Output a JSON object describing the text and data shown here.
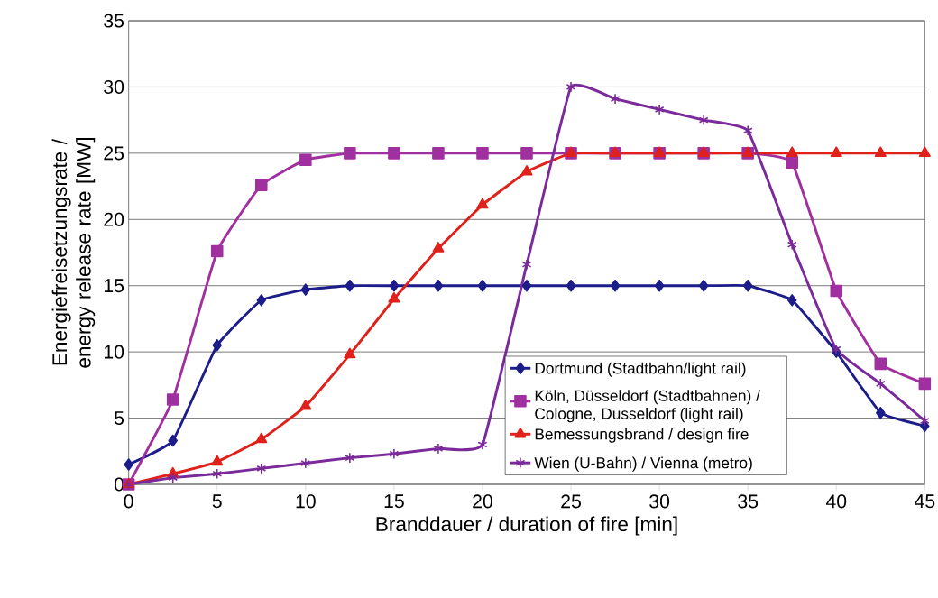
{
  "chart_data": {
    "type": "line",
    "xlabel": "Branddauer / duration of fire [min]",
    "ylabel": "Energiefreisetzungsrate / energy release rate [MW]",
    "x": [
      0,
      2.5,
      5,
      7.5,
      10,
      12.5,
      15,
      17.5,
      20,
      22.5,
      25,
      27.5,
      30,
      32.5,
      35,
      37.5,
      40,
      42.5,
      45
    ],
    "xlim": [
      0,
      45
    ],
    "xticks": [
      0,
      5,
      10,
      15,
      20,
      25,
      30,
      35,
      40,
      45
    ],
    "ylim": [
      0,
      35
    ],
    "yticks": [
      0,
      5,
      10,
      15,
      20,
      25,
      30,
      35
    ],
    "grid": "y",
    "legend": "bottom right",
    "series": [
      {
        "name": "Dortmund (Stadtbahn/light rail)",
        "color": "#1c1c8a",
        "marker": "diamond",
        "values": [
          1.5,
          3.3,
          10.5,
          13.9,
          14.7,
          15,
          15,
          15,
          15,
          15,
          15,
          15,
          15,
          15,
          15,
          13.9,
          10,
          5.4,
          4.4
        ]
      },
      {
        "name": "Köln, Düsseldorf (Stadtbahnen) / Cologne, Dusseldorf (light rail)",
        "color": "#a0309f",
        "marker": "square",
        "values": [
          0,
          6.4,
          17.6,
          22.6,
          24.5,
          25,
          25,
          25,
          25,
          25,
          25,
          25,
          25,
          25,
          25,
          24.3,
          14.6,
          9.1,
          7.6
        ]
      },
      {
        "name": "Bemessungsbrand / design fire",
        "color": "#e0201a",
        "marker": "triangle",
        "values": [
          0,
          0.8,
          1.7,
          3.4,
          5.9,
          9.8,
          14,
          17.8,
          21.1,
          23.6,
          25,
          25,
          25,
          25,
          25,
          25,
          25,
          25,
          25
        ]
      },
      {
        "name": "Wien (U-Bahn) / Vienna (metro)",
        "color": "#7a2a9a",
        "marker": "cross",
        "values": [
          0,
          0.5,
          0.8,
          1.2,
          1.6,
          2.0,
          2.3,
          2.7,
          3.0,
          16.6,
          30,
          29.1,
          28.3,
          27.5,
          26.7,
          18.1,
          10.2,
          7.6,
          4.8
        ]
      }
    ]
  }
}
